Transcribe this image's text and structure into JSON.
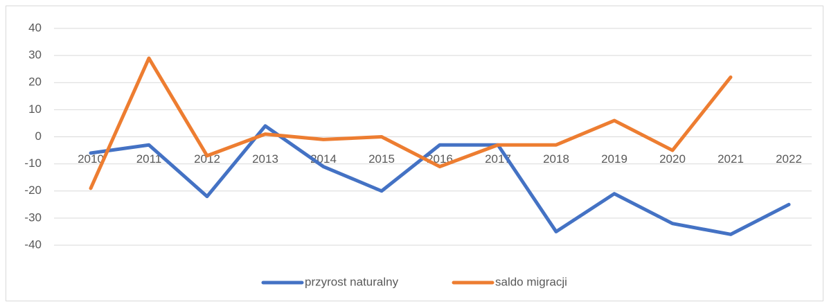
{
  "chart_data": {
    "type": "line",
    "categories": [
      "2010",
      "2011",
      "2012",
      "2013",
      "2014",
      "2015",
      "2016",
      "2017",
      "2018",
      "2019",
      "2020",
      "2021",
      "2022"
    ],
    "series": [
      {
        "name": "przyrost naturalny",
        "color": "#4472c4",
        "values": [
          -6,
          -3,
          -22,
          4,
          -11,
          -20,
          -3,
          -3,
          -35,
          -21,
          -32,
          -36,
          -25
        ]
      },
      {
        "name": "saldo migracji",
        "color": "#ed7d31",
        "values": [
          -19,
          29,
          -7,
          1,
          -1,
          0,
          -11,
          -3,
          -3,
          6,
          -5,
          22,
          null
        ]
      }
    ],
    "ylim": [
      -40,
      40
    ],
    "yticks": [
      -40,
      -30,
      -20,
      -10,
      0,
      10,
      20,
      30,
      40
    ],
    "grid": true,
    "legend": "bottom"
  }
}
